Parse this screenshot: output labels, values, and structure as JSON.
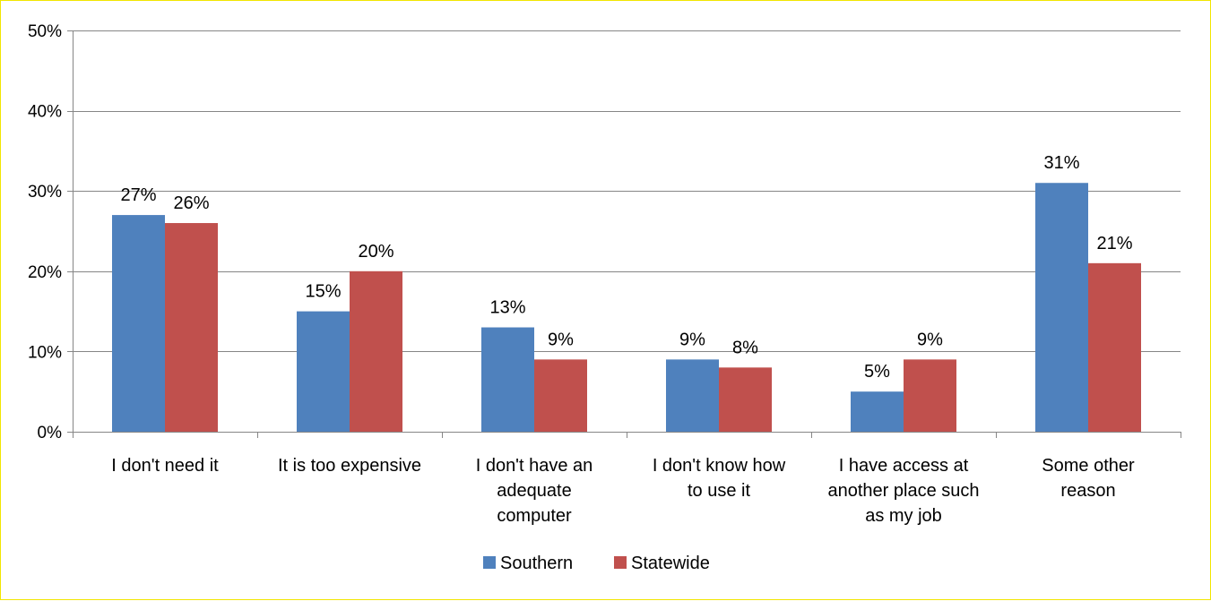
{
  "chart_data": {
    "type": "bar",
    "title": "",
    "xlabel": "",
    "ylabel": "",
    "categories": [
      [
        "I don't need it"
      ],
      [
        "It is too expensive"
      ],
      [
        "I don't have an",
        "adequate",
        "computer"
      ],
      [
        "I don't know how",
        "to use it"
      ],
      [
        "I have access at",
        "another place such",
        "as my job"
      ],
      [
        "Some other",
        "reason"
      ]
    ],
    "series": [
      {
        "name": "Southern",
        "color": "#4f81bd",
        "values": [
          27,
          15,
          13,
          9,
          5,
          31
        ],
        "labels": [
          "27%",
          "15%",
          "13%",
          "9%",
          "5%",
          "31%"
        ]
      },
      {
        "name": "Statewide",
        "color": "#c0504d",
        "values": [
          26,
          20,
          9,
          8,
          9,
          21
        ],
        "labels": [
          "26%",
          "20%",
          "9%",
          "8%",
          "9%",
          "21%"
        ]
      }
    ],
    "ylim": [
      0,
      50
    ],
    "yticks": [
      0,
      10,
      20,
      30,
      40,
      50
    ],
    "ytick_labels": [
      "0%",
      "10%",
      "20%",
      "30%",
      "40%",
      "50%"
    ],
    "grid": true,
    "legend": "bottom",
    "gridline_color": "#868686"
  }
}
